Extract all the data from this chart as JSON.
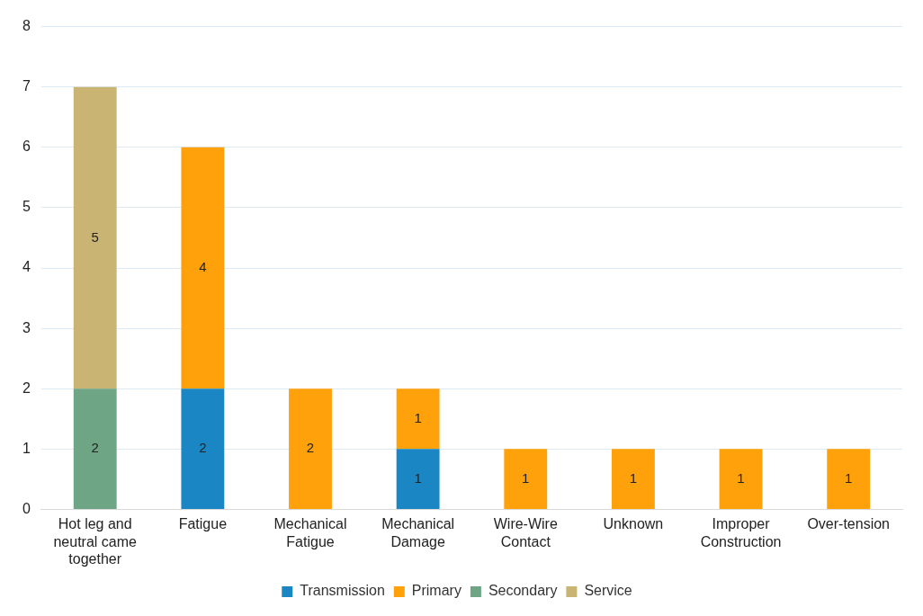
{
  "chart_data": {
    "type": "bar",
    "stacked": true,
    "categories": [
      "Hot leg and neutral came together",
      "Fatigue",
      "Mechanical Fatigue",
      "Mechanical Damage",
      "Wire-Wire Contact",
      "Unknown",
      "Improper Construction",
      "Over-tension"
    ],
    "series": [
      {
        "name": "Transmission",
        "color": "#1a87c4",
        "values": [
          null,
          2,
          null,
          1,
          null,
          null,
          null,
          null
        ]
      },
      {
        "name": "Primary",
        "color": "#ffa10a",
        "values": [
          null,
          4,
          2,
          1,
          1,
          1,
          1,
          1
        ]
      },
      {
        "name": "Secondary",
        "color": "#6da585",
        "values": [
          2,
          null,
          null,
          null,
          null,
          null,
          null,
          null
        ]
      },
      {
        "name": "Service",
        "color": "#c9b473",
        "values": [
          5,
          null,
          null,
          null,
          null,
          null,
          null,
          null
        ]
      }
    ],
    "ylim": [
      0,
      8
    ],
    "yticks": [
      0,
      1,
      2,
      3,
      4,
      5,
      6,
      7,
      8
    ],
    "grid": "y",
    "legend": "bottom",
    "data_labels": true
  }
}
